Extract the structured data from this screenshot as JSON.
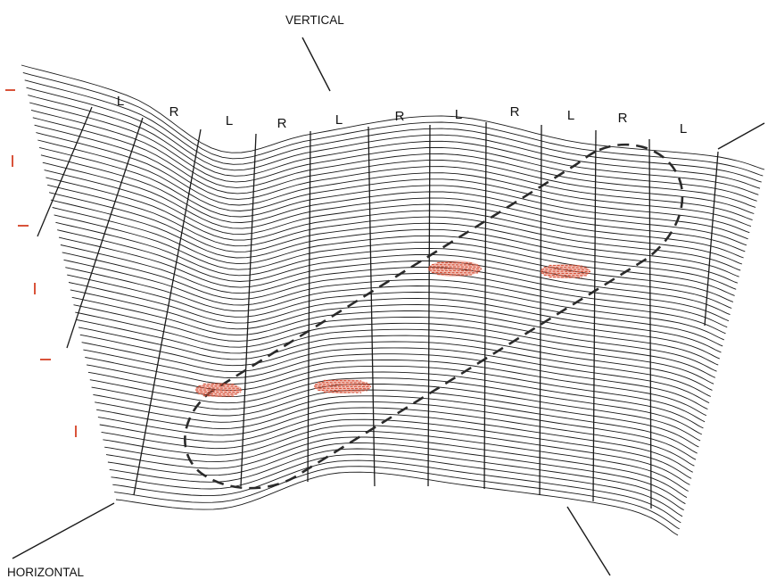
{
  "labels": {
    "vertical": "VERTICAL",
    "horizontal": "HORIZONTAL"
  },
  "column_labels": [
    "L",
    "R",
    "L",
    "R",
    "L",
    "R",
    "L",
    "R",
    "L",
    "R",
    "L"
  ],
  "colors": {
    "lines": "#1a1a1a",
    "dashed_outline": "#2a2a2a",
    "activity_patches": "#d9533a",
    "left_ticks": "#d9533a"
  }
}
